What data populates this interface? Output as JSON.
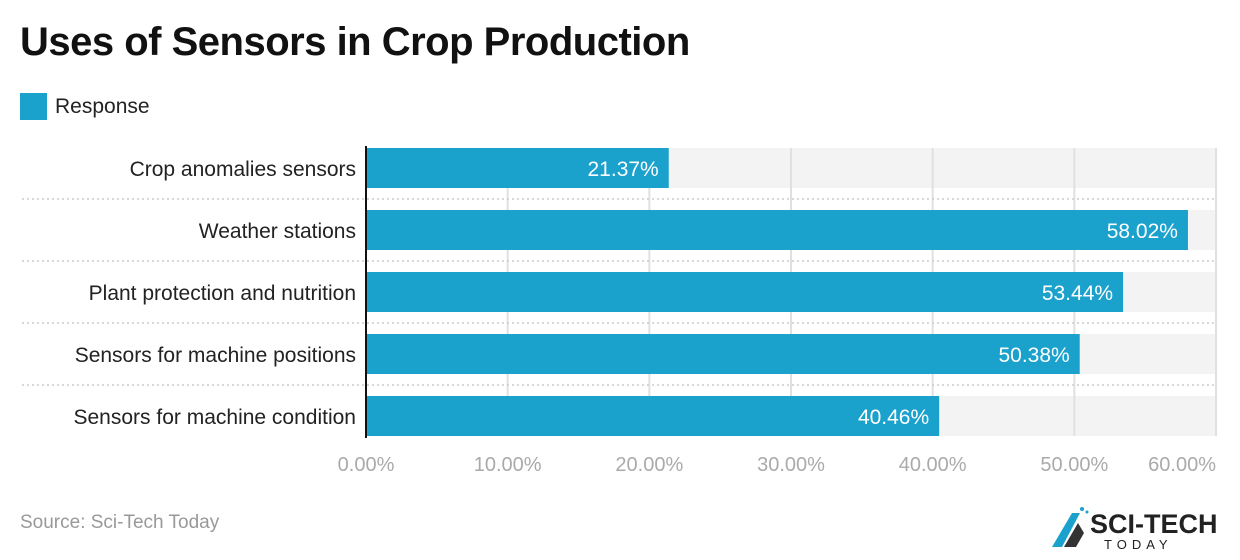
{
  "title": "Uses of Sensors in Crop Production",
  "legend": {
    "label": "Response",
    "color": "#1aa1cc"
  },
  "source": "Source: Sci-Tech Today",
  "logo": {
    "text": "SCI-TECH",
    "subtext": "TODAY"
  },
  "chart_data": {
    "type": "bar",
    "orientation": "horizontal",
    "categories": [
      "Crop anomalies sensors",
      "Weather stations",
      "Plant protection and nutrition",
      "Sensors for machine positions",
      "Sensors for machine condition"
    ],
    "series": [
      {
        "name": "Response",
        "values": [
          21.37,
          58.02,
          53.44,
          50.38,
          40.46
        ],
        "labels": [
          "21.37%",
          "58.02%",
          "53.44%",
          "50.38%",
          "40.46%"
        ]
      }
    ],
    "xlim": [
      0,
      60
    ],
    "ticks": [
      0,
      10,
      20,
      30,
      40,
      50,
      60
    ],
    "tick_labels": [
      "0.00%",
      "10.00%",
      "20.00%",
      "30.00%",
      "40.00%",
      "50.00%",
      "60.00%"
    ],
    "grid": true,
    "legend_position": "top-left",
    "colors": {
      "bar": "#1aa1cc",
      "track": "#f2f3f2"
    }
  }
}
